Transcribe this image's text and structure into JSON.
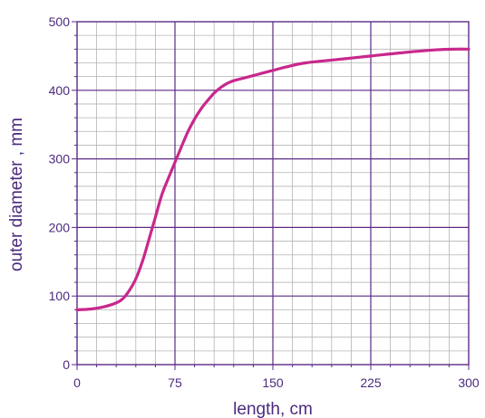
{
  "chart_data": {
    "type": "line",
    "title": "",
    "xlabel": "length, cm",
    "ylabel": "outer diameter , mm",
    "xlim": [
      0,
      300
    ],
    "ylim": [
      0,
      500
    ],
    "x_major_ticks": [
      0,
      75,
      150,
      225,
      300
    ],
    "y_major_ticks": [
      0,
      100,
      200,
      300,
      400,
      500
    ],
    "x_minor_step": 15,
    "y_minor_step": 20,
    "grid": true,
    "legend": "none",
    "colors": {
      "line": "#c8288c",
      "major_grid": "#5b2a86",
      "minor_grid": "#b4b4b4",
      "text": "#4b2a7e"
    },
    "series": [
      {
        "x": [
          0,
          10,
          20,
          30,
          35,
          40,
          45,
          50,
          55,
          60,
          65,
          70,
          75,
          80,
          85,
          90,
          95,
          100,
          105,
          110,
          115,
          120,
          130,
          140,
          150,
          160,
          175,
          200,
          225,
          250,
          275,
          290,
          300
        ],
        "y": [
          80,
          81,
          84,
          90,
          96,
          108,
          125,
          150,
          182,
          215,
          248,
          272,
          295,
          318,
          340,
          358,
          373,
          385,
          396,
          404,
          410,
          414,
          419,
          424,
          429,
          434,
          440,
          445,
          450,
          455,
          459,
          460,
          460
        ]
      }
    ]
  }
}
